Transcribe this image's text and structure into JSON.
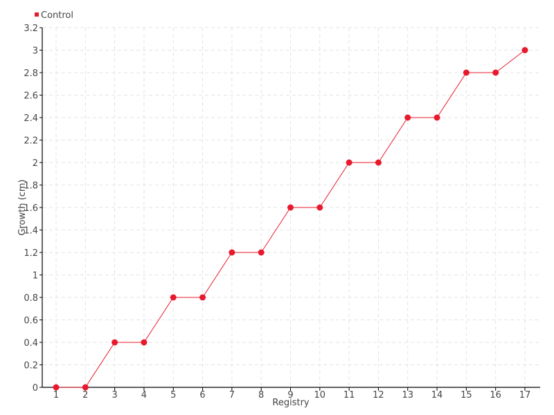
{
  "chart_data": {
    "type": "line",
    "title": "",
    "xlabel": "Registry",
    "ylabel": "Growth (cm)",
    "x": [
      1,
      2,
      3,
      4,
      5,
      6,
      7,
      8,
      9,
      10,
      11,
      12,
      13,
      14,
      15,
      16,
      17
    ],
    "series": [
      {
        "name": "Control",
        "color": "#e8192c",
        "values": [
          0,
          0,
          0.4,
          0.4,
          0.8,
          0.8,
          1.2,
          1.2,
          1.6,
          1.6,
          2,
          2,
          2.4,
          2.4,
          2.8,
          2.8,
          3
        ]
      }
    ],
    "ylim": [
      0,
      3.2
    ],
    "yticks": [
      0,
      0.2,
      0.4,
      0.6,
      0.8,
      1,
      1.2,
      1.4,
      1.6,
      1.8,
      2,
      2.2,
      2.4,
      2.6,
      2.8,
      3,
      3.2
    ],
    "grid": true,
    "legend": "top-left"
  }
}
